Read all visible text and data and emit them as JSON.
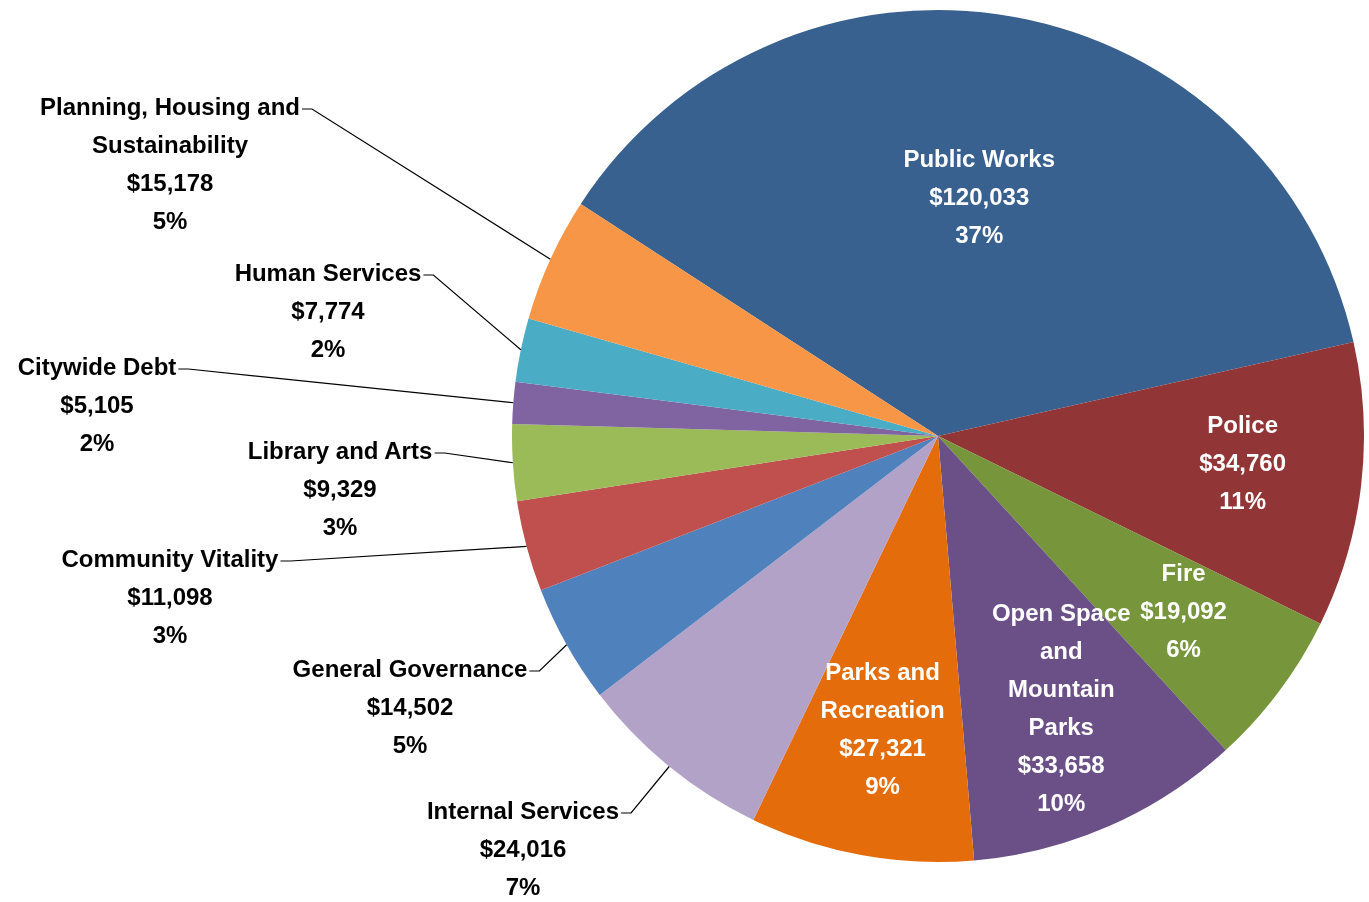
{
  "chart_data": {
    "type": "pie",
    "legend": false,
    "categories": [
      "Public Works",
      "Police",
      "Fire",
      "Open Space and Mountain Parks",
      "Parks and Recreation",
      "Internal Services",
      "General Governance",
      "Community Vitality",
      "Library and Arts",
      "Citywide Debt",
      "Human Services",
      "Planning, Housing and Sustainability"
    ],
    "values": [
      120033,
      34760,
      19092,
      33658,
      27321,
      24016,
      14502,
      11098,
      9329,
      5105,
      7774,
      15178
    ],
    "value_labels": [
      "$120,033\n37%",
      "$34,760\n11%",
      "$19,092\n6%",
      "$33,658\n10%",
      "$27,321\n9%",
      "$24,016\n7%",
      "$14,502\n5%",
      "$11,098\n3%",
      "$9,329\n3%",
      "$5,105\n2%",
      "$7,774\n2%",
      "$15,178\n5%"
    ],
    "colors": [
      "#38618f",
      "#913536",
      "#77953b",
      "#6a5087",
      "#e46c0a",
      "#b3a2c7",
      "#4f81bd",
      "#c0504d",
      "#9bbb59",
      "#8064a2",
      "#4bacc6",
      "#f79646"
    ]
  }
}
